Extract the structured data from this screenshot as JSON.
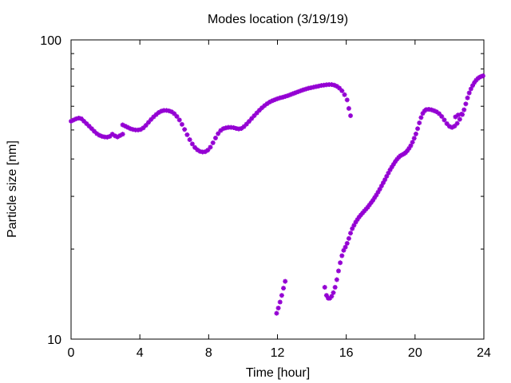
{
  "chart_data": {
    "type": "scatter",
    "title": "Modes location (3/19/19)",
    "xlabel": "Time [hour]",
    "ylabel": "Particle size [nm]",
    "xlim": [
      0,
      24
    ],
    "ylim": [
      10,
      100
    ],
    "yscale": "log",
    "xticks": [
      0,
      4,
      8,
      12,
      16,
      20,
      24
    ],
    "yticks": [
      10,
      100
    ],
    "marker": "asterisk",
    "marker_color": "#9400D3",
    "grid": false,
    "legend": "none",
    "series": [
      {
        "points": [
          [
            0.0,
            53.5
          ],
          [
            0.15,
            54.0
          ],
          [
            0.3,
            54.5
          ],
          [
            0.45,
            54.8
          ],
          [
            0.6,
            54.5
          ],
          [
            0.75,
            53.5
          ],
          [
            0.9,
            52.5
          ],
          [
            1.05,
            51.5
          ],
          [
            1.2,
            50.5
          ],
          [
            1.35,
            49.5
          ],
          [
            1.5,
            48.6
          ],
          [
            1.65,
            48.0
          ],
          [
            1.8,
            47.6
          ],
          [
            1.95,
            47.4
          ],
          [
            2.1,
            47.3
          ],
          [
            2.25,
            47.6
          ],
          [
            2.4,
            48.4
          ],
          [
            2.55,
            47.8
          ],
          [
            2.7,
            47.4
          ],
          [
            2.85,
            47.9
          ],
          [
            3.0,
            48.4
          ],
          [
            3.0,
            52.0
          ],
          [
            3.15,
            51.5
          ],
          [
            3.3,
            51.0
          ],
          [
            3.45,
            50.5
          ],
          [
            3.6,
            50.2
          ],
          [
            3.75,
            50.0
          ],
          [
            3.9,
            50.0
          ],
          [
            4.05,
            50.2
          ],
          [
            4.2,
            50.8
          ],
          [
            4.35,
            51.8
          ],
          [
            4.5,
            53.0
          ],
          [
            4.65,
            54.2
          ],
          [
            4.8,
            55.3
          ],
          [
            4.95,
            56.3
          ],
          [
            5.1,
            57.2
          ],
          [
            5.25,
            57.8
          ],
          [
            5.4,
            58.1
          ],
          [
            5.55,
            58.1
          ],
          [
            5.7,
            57.9
          ],
          [
            5.85,
            57.5
          ],
          [
            6.0,
            56.7
          ],
          [
            6.15,
            55.5
          ],
          [
            6.3,
            54.0
          ],
          [
            6.45,
            52.2
          ],
          [
            6.6,
            50.2
          ],
          [
            6.75,
            48.2
          ],
          [
            6.9,
            46.4
          ],
          [
            7.05,
            44.9
          ],
          [
            7.2,
            43.7
          ],
          [
            7.35,
            42.9
          ],
          [
            7.5,
            42.4
          ],
          [
            7.65,
            42.2
          ],
          [
            7.8,
            42.3
          ],
          [
            7.95,
            42.8
          ],
          [
            8.1,
            43.8
          ],
          [
            8.25,
            45.3
          ],
          [
            8.4,
            47.0
          ],
          [
            8.55,
            48.6
          ],
          [
            8.7,
            49.8
          ],
          [
            8.85,
            50.5
          ],
          [
            9.0,
            50.8
          ],
          [
            9.15,
            51.0
          ],
          [
            9.3,
            51.0
          ],
          [
            9.45,
            50.9
          ],
          [
            9.6,
            50.6
          ],
          [
            9.75,
            50.4
          ],
          [
            9.9,
            50.6
          ],
          [
            10.05,
            51.3
          ],
          [
            10.2,
            52.3
          ],
          [
            10.35,
            53.4
          ],
          [
            10.5,
            54.6
          ],
          [
            10.65,
            55.8
          ],
          [
            10.8,
            57.0
          ],
          [
            10.95,
            58.2
          ],
          [
            11.1,
            59.3
          ],
          [
            11.25,
            60.3
          ],
          [
            11.4,
            61.2
          ],
          [
            11.55,
            62.0
          ],
          [
            11.7,
            62.6
          ],
          [
            11.85,
            63.1
          ],
          [
            12.0,
            63.6
          ],
          [
            12.15,
            64.0
          ],
          [
            12.3,
            64.3
          ],
          [
            12.45,
            64.7
          ],
          [
            12.6,
            65.1
          ],
          [
            12.75,
            65.6
          ],
          [
            12.9,
            66.1
          ],
          [
            13.05,
            66.6
          ],
          [
            13.2,
            67.1
          ],
          [
            13.35,
            67.6
          ],
          [
            13.5,
            68.1
          ],
          [
            13.65,
            68.5
          ],
          [
            13.8,
            68.9
          ],
          [
            13.95,
            69.2
          ],
          [
            14.1,
            69.5
          ],
          [
            14.25,
            69.8
          ],
          [
            14.4,
            70.1
          ],
          [
            14.55,
            70.4
          ],
          [
            14.7,
            70.6
          ],
          [
            14.85,
            70.8
          ],
          [
            15.0,
            70.9
          ],
          [
            15.15,
            70.9
          ],
          [
            15.3,
            70.6
          ],
          [
            15.45,
            70.0
          ],
          [
            15.6,
            69.0
          ],
          [
            15.75,
            67.6
          ],
          [
            15.9,
            65.6
          ],
          [
            16.05,
            63.0
          ],
          [
            16.15,
            59.0
          ],
          [
            16.25,
            55.8
          ],
          [
            11.95,
            12.2
          ],
          [
            12.05,
            12.7
          ],
          [
            12.15,
            13.3
          ],
          [
            12.25,
            14.0
          ],
          [
            12.35,
            14.8
          ],
          [
            12.45,
            15.6
          ],
          [
            14.75,
            14.9
          ],
          [
            14.85,
            14.0
          ],
          [
            14.95,
            13.7
          ],
          [
            15.05,
            13.7
          ],
          [
            15.15,
            13.9
          ],
          [
            15.25,
            14.3
          ],
          [
            15.35,
            14.9
          ],
          [
            15.45,
            15.8
          ],
          [
            15.55,
            16.9
          ],
          [
            15.65,
            18.0
          ],
          [
            15.75,
            19.0
          ],
          [
            15.85,
            19.8
          ],
          [
            15.95,
            20.3
          ],
          [
            16.05,
            20.9
          ],
          [
            16.15,
            21.7
          ],
          [
            16.25,
            22.6
          ],
          [
            16.35,
            23.4
          ],
          [
            16.45,
            24.0
          ],
          [
            16.55,
            24.6
          ],
          [
            16.65,
            25.1
          ],
          [
            16.75,
            25.6
          ],
          [
            16.85,
            26.0
          ],
          [
            16.95,
            26.4
          ],
          [
            17.05,
            26.8
          ],
          [
            17.15,
            27.2
          ],
          [
            17.25,
            27.6
          ],
          [
            17.35,
            28.1
          ],
          [
            17.45,
            28.6
          ],
          [
            17.55,
            29.1
          ],
          [
            17.65,
            29.7
          ],
          [
            17.75,
            30.3
          ],
          [
            17.85,
            31.0
          ],
          [
            17.95,
            31.7
          ],
          [
            18.05,
            32.5
          ],
          [
            18.15,
            33.3
          ],
          [
            18.25,
            34.1
          ],
          [
            18.35,
            35.0
          ],
          [
            18.45,
            35.9
          ],
          [
            18.55,
            36.8
          ],
          [
            18.65,
            37.6
          ],
          [
            18.75,
            38.4
          ],
          [
            18.85,
            39.2
          ],
          [
            18.95,
            39.9
          ],
          [
            19.05,
            40.5
          ],
          [
            19.15,
            41.0
          ],
          [
            19.25,
            41.3
          ],
          [
            19.35,
            41.6
          ],
          [
            19.45,
            42.0
          ],
          [
            19.55,
            42.6
          ],
          [
            19.65,
            43.4
          ],
          [
            19.75,
            44.3
          ],
          [
            19.85,
            45.5
          ],
          [
            19.95,
            46.9
          ],
          [
            20.05,
            48.5
          ],
          [
            20.15,
            50.5
          ],
          [
            20.25,
            52.8
          ],
          [
            20.35,
            55.0
          ],
          [
            20.45,
            56.8
          ],
          [
            20.55,
            57.9
          ],
          [
            20.65,
            58.5
          ],
          [
            20.8,
            58.6
          ],
          [
            20.95,
            58.4
          ],
          [
            21.1,
            58.0
          ],
          [
            21.25,
            57.5
          ],
          [
            21.4,
            56.7
          ],
          [
            21.55,
            55.5
          ],
          [
            21.7,
            54.0
          ],
          [
            21.85,
            52.5
          ],
          [
            22.0,
            51.4
          ],
          [
            22.15,
            51.0
          ],
          [
            22.3,
            51.5
          ],
          [
            22.45,
            52.6
          ],
          [
            22.6,
            54.3
          ],
          [
            22.75,
            56.3
          ],
          [
            22.85,
            58.4
          ],
          [
            22.95,
            61.1
          ],
          [
            23.05,
            64.0
          ],
          [
            23.15,
            66.5
          ],
          [
            23.25,
            68.6
          ],
          [
            23.35,
            70.4
          ],
          [
            23.45,
            72.0
          ],
          [
            23.55,
            73.3
          ],
          [
            23.65,
            74.3
          ],
          [
            23.75,
            75.0
          ],
          [
            23.85,
            75.5
          ],
          [
            23.95,
            75.8
          ],
          [
            22.35,
            55.3
          ],
          [
            22.5,
            56.1
          ],
          [
            22.7,
            56.5
          ]
        ]
      }
    ]
  }
}
